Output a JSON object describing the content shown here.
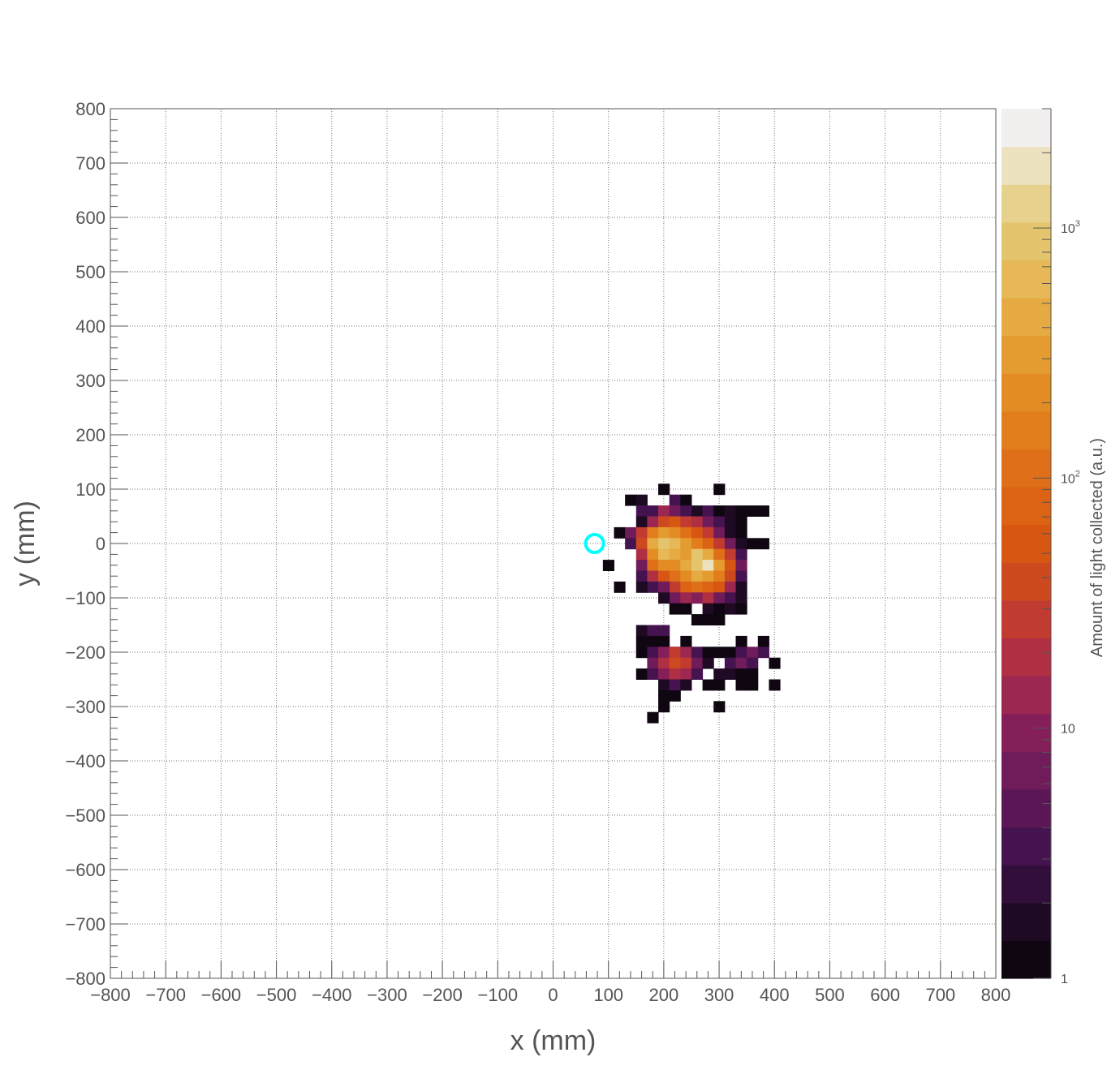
{
  "chart_data": {
    "type": "heatmap",
    "title": "",
    "xlabel": "x (mm)",
    "ylabel": "y (mm)",
    "xlim": [
      -800,
      800
    ],
    "ylim": [
      -800,
      800
    ],
    "grid": true,
    "x_tick_labels": [
      "−800",
      "−700",
      "−600",
      "−500",
      "−400",
      "−300",
      "−200",
      "−100",
      "0",
      "100",
      "200",
      "300",
      "400",
      "500",
      "600",
      "700",
      "800"
    ],
    "y_tick_labels": [
      "800",
      "700",
      "600",
      "500",
      "400",
      "300",
      "200",
      "100",
      "0",
      "−100",
      "−200",
      "−300",
      "−400",
      "−500",
      "−600",
      "−700",
      "−800"
    ],
    "x_tick_values": [
      -800,
      -700,
      -600,
      -500,
      -400,
      -300,
      -200,
      -100,
      0,
      100,
      200,
      300,
      400,
      500,
      600,
      700,
      800
    ],
    "y_tick_values": [
      800,
      700,
      600,
      500,
      400,
      300,
      200,
      100,
      0,
      -100,
      -200,
      -300,
      -400,
      -500,
      -600,
      -700,
      -800
    ],
    "bin_size_mm": 20,
    "colorbar": {
      "title": "Amount of light collected (a.u.)",
      "scale": "log",
      "range": [
        1,
        3000
      ],
      "labels": [
        {
          "text": "1",
          "value": 1
        },
        {
          "text": "10",
          "value": 10
        },
        {
          "text": "10",
          "exponent": "2",
          "value": 100
        },
        {
          "text": "10",
          "exponent": "3",
          "value": 1000
        }
      ],
      "palette": [
        "#0f0612",
        "#1f0a24",
        "#310f3a",
        "#45134f",
        "#5a1655",
        "#701c5a",
        "#851f59",
        "#9c2750",
        "#b12f42",
        "#c13b30",
        "#cc4a1e",
        "#d65612",
        "#dc6214",
        "#df6f18",
        "#e27d1c",
        "#e38c24",
        "#e49c30",
        "#e5aa42",
        "#e6b857",
        "#e5c46e",
        "#e6d28d",
        "#ece2c0",
        "#f2f0ee"
      ]
    },
    "marker": {
      "shape": "circle",
      "x": 75,
      "y": 0,
      "color": "#00ffff"
    },
    "bins": [
      [
        140,
        80,
        1
      ],
      [
        160,
        80,
        2
      ],
      [
        200,
        100,
        1
      ],
      [
        220,
        80,
        3
      ],
      [
        240,
        80,
        1
      ],
      [
        300,
        100,
        1
      ],
      [
        160,
        60,
        3
      ],
      [
        180,
        60,
        4
      ],
      [
        200,
        60,
        12
      ],
      [
        220,
        60,
        8
      ],
      [
        240,
        60,
        4
      ],
      [
        260,
        60,
        2
      ],
      [
        280,
        60,
        3
      ],
      [
        300,
        60,
        1
      ],
      [
        320,
        60,
        2
      ],
      [
        340,
        60,
        1
      ],
      [
        360,
        60,
        1
      ],
      [
        380,
        60,
        1
      ],
      [
        160,
        40,
        2
      ],
      [
        180,
        40,
        12
      ],
      [
        200,
        40,
        40
      ],
      [
        220,
        40,
        60
      ],
      [
        240,
        40,
        30
      ],
      [
        260,
        40,
        20
      ],
      [
        280,
        40,
        6
      ],
      [
        300,
        40,
        3
      ],
      [
        320,
        40,
        2
      ],
      [
        340,
        40,
        1
      ],
      [
        120,
        20,
        1
      ],
      [
        140,
        20,
        6
      ],
      [
        160,
        20,
        25
      ],
      [
        180,
        20,
        150
      ],
      [
        200,
        20,
        300
      ],
      [
        220,
        20,
        220
      ],
      [
        240,
        20,
        120
      ],
      [
        260,
        20,
        50
      ],
      [
        280,
        20,
        25
      ],
      [
        300,
        20,
        8
      ],
      [
        320,
        20,
        2
      ],
      [
        340,
        20,
        1
      ],
      [
        140,
        0,
        3
      ],
      [
        160,
        0,
        40
      ],
      [
        180,
        0,
        400
      ],
      [
        200,
        0,
        900
      ],
      [
        220,
        0,
        700
      ],
      [
        240,
        0,
        350
      ],
      [
        260,
        0,
        180
      ],
      [
        280,
        0,
        90
      ],
      [
        300,
        0,
        30
      ],
      [
        320,
        0,
        6
      ],
      [
        340,
        0,
        2
      ],
      [
        360,
        0,
        1
      ],
      [
        380,
        0,
        1
      ],
      [
        160,
        -20,
        20
      ],
      [
        180,
        -20,
        250
      ],
      [
        200,
        -20,
        600
      ],
      [
        220,
        -20,
        450
      ],
      [
        240,
        -20,
        350
      ],
      [
        260,
        -20,
        900
      ],
      [
        280,
        -20,
        400
      ],
      [
        300,
        -20,
        120
      ],
      [
        320,
        -20,
        30
      ],
      [
        340,
        -20,
        4
      ],
      [
        100,
        -40,
        1
      ],
      [
        160,
        -40,
        8
      ],
      [
        180,
        -40,
        100
      ],
      [
        200,
        -40,
        200
      ],
      [
        220,
        -40,
        250
      ],
      [
        240,
        -40,
        500
      ],
      [
        260,
        -40,
        800
      ],
      [
        280,
        -40,
        1500
      ],
      [
        300,
        -40,
        300
      ],
      [
        320,
        -40,
        60
      ],
      [
        340,
        -40,
        6
      ],
      [
        160,
        -60,
        3
      ],
      [
        180,
        -60,
        20
      ],
      [
        200,
        -60,
        60
      ],
      [
        220,
        -60,
        120
      ],
      [
        240,
        -60,
        250
      ],
      [
        260,
        -60,
        400
      ],
      [
        280,
        -60,
        300
      ],
      [
        300,
        -60,
        150
      ],
      [
        320,
        -60,
        40
      ],
      [
        340,
        -60,
        4
      ],
      [
        180,
        -80,
        3
      ],
      [
        200,
        -80,
        8
      ],
      [
        220,
        -80,
        25
      ],
      [
        240,
        -80,
        70
      ],
      [
        260,
        -80,
        120
      ],
      [
        280,
        -80,
        90
      ],
      [
        300,
        -80,
        50
      ],
      [
        320,
        -80,
        12
      ],
      [
        340,
        -80,
        2
      ],
      [
        120,
        -80,
        1
      ],
      [
        160,
        -80,
        2
      ],
      [
        200,
        -80,
        8
      ],
      [
        220,
        -100,
        6
      ],
      [
        240,
        -100,
        12
      ],
      [
        260,
        -100,
        10
      ],
      [
        280,
        -100,
        20
      ],
      [
        300,
        -100,
        6
      ],
      [
        320,
        -100,
        3
      ],
      [
        340,
        -100,
        2
      ],
      [
        200,
        -100,
        2
      ],
      [
        220,
        -120,
        1
      ],
      [
        240,
        -120,
        1
      ],
      [
        280,
        -120,
        2
      ],
      [
        300,
        -120,
        1
      ],
      [
        320,
        -120,
        2
      ],
      [
        340,
        -120,
        1
      ],
      [
        260,
        -140,
        1
      ],
      [
        280,
        -140,
        1
      ],
      [
        300,
        -140,
        1
      ],
      [
        160,
        -160,
        2
      ],
      [
        180,
        -160,
        3
      ],
      [
        200,
        -160,
        4
      ],
      [
        240,
        -180,
        1
      ],
      [
        340,
        -180,
        1
      ],
      [
        380,
        -180,
        1
      ],
      [
        160,
        -180,
        1
      ],
      [
        180,
        -180,
        1
      ],
      [
        200,
        -180,
        1
      ],
      [
        220,
        -200,
        2
      ],
      [
        240,
        -200,
        3
      ],
      [
        320,
        -200,
        1
      ],
      [
        160,
        -200,
        1
      ],
      [
        180,
        -200,
        4
      ],
      [
        200,
        -200,
        10
      ],
      [
        220,
        -200,
        25
      ],
      [
        240,
        -200,
        15
      ],
      [
        260,
        -200,
        4
      ],
      [
        280,
        -200,
        1
      ],
      [
        300,
        -200,
        1
      ],
      [
        340,
        -200,
        4
      ],
      [
        360,
        -200,
        8
      ],
      [
        380,
        -200,
        4
      ],
      [
        180,
        -220,
        6
      ],
      [
        200,
        -220,
        20
      ],
      [
        220,
        -220,
        40
      ],
      [
        240,
        -220,
        30
      ],
      [
        260,
        -220,
        8
      ],
      [
        280,
        -220,
        2
      ],
      [
        320,
        -220,
        3
      ],
      [
        340,
        -220,
        6
      ],
      [
        360,
        -220,
        3
      ],
      [
        400,
        -220,
        1
      ],
      [
        160,
        -240,
        1
      ],
      [
        180,
        -240,
        3
      ],
      [
        200,
        -240,
        10
      ],
      [
        220,
        -240,
        18
      ],
      [
        240,
        -240,
        12
      ],
      [
        260,
        -240,
        4
      ],
      [
        300,
        -240,
        2
      ],
      [
        320,
        -240,
        2
      ],
      [
        340,
        -240,
        1
      ],
      [
        360,
        -240,
        1
      ],
      [
        200,
        -260,
        2
      ],
      [
        220,
        -260,
        4
      ],
      [
        240,
        -260,
        2
      ],
      [
        280,
        -260,
        1
      ],
      [
        300,
        -260,
        1
      ],
      [
        340,
        -260,
        1
      ],
      [
        360,
        -260,
        1
      ],
      [
        400,
        -260,
        1
      ],
      [
        200,
        -280,
        1
      ],
      [
        220,
        -280,
        1
      ],
      [
        300,
        -300,
        1
      ],
      [
        200,
        -300,
        1
      ],
      [
        180,
        -320,
        1
      ]
    ]
  }
}
